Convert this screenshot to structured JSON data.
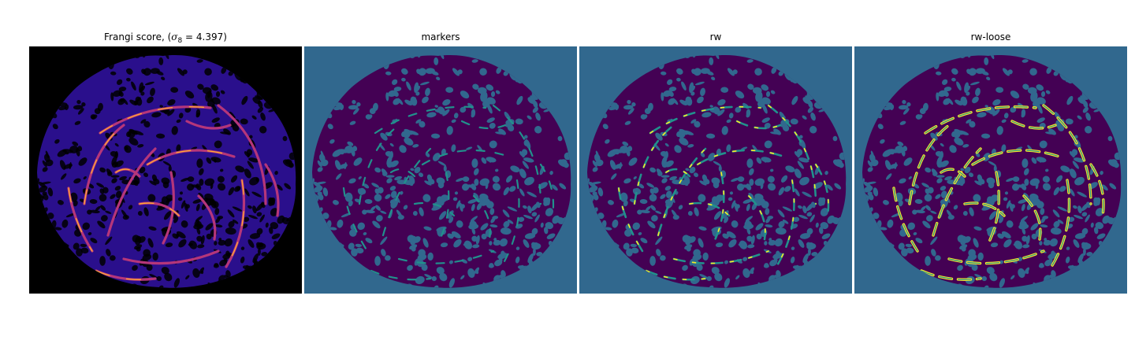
{
  "panels": [
    {
      "id": "frangi",
      "title_prefix": "Frangi score, (",
      "title_symbol": "σ",
      "title_subscript": "8",
      "title_suffix": " = 4.397)"
    },
    {
      "id": "markers",
      "title": "markers"
    },
    {
      "id": "rw",
      "title": "rw"
    },
    {
      "id": "rw-loose",
      "title": "rw-loose"
    }
  ],
  "colors": {
    "frangi_background": "#000000",
    "frangi_texture": "#2a0f8c",
    "frangi_ridge_mid": "#b5367a",
    "frangi_ridge_high": "#fca636",
    "segment_background": "#31688e",
    "segment_tissue": "#440154",
    "segment_marker": "#21918c",
    "segment_vessel": "#fde725"
  }
}
